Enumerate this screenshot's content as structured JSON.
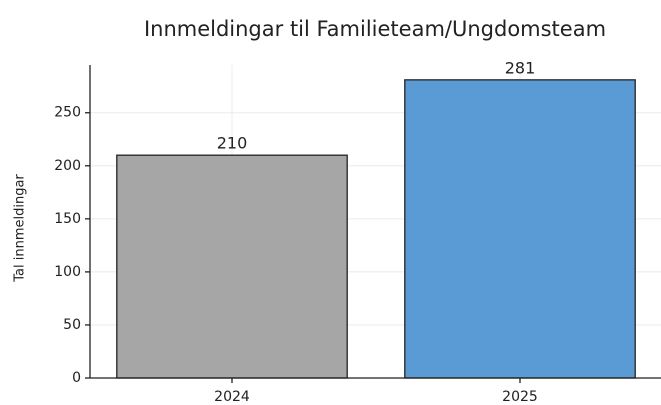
{
  "chart_data": {
    "type": "bar",
    "title": "Innmeldingar til Familieteam/Ungdomsteam",
    "y_label": "Tal innmeldingar",
    "categories": [
      "2024",
      "2025"
    ],
    "values": [
      210,
      281
    ],
    "colors": [
      "#a6a6a6",
      "#5b9bd5"
    ],
    "ylim": [
      0,
      295
    ],
    "yticks": [
      0,
      50,
      100,
      150,
      200,
      250
    ],
    "grid": true
  }
}
